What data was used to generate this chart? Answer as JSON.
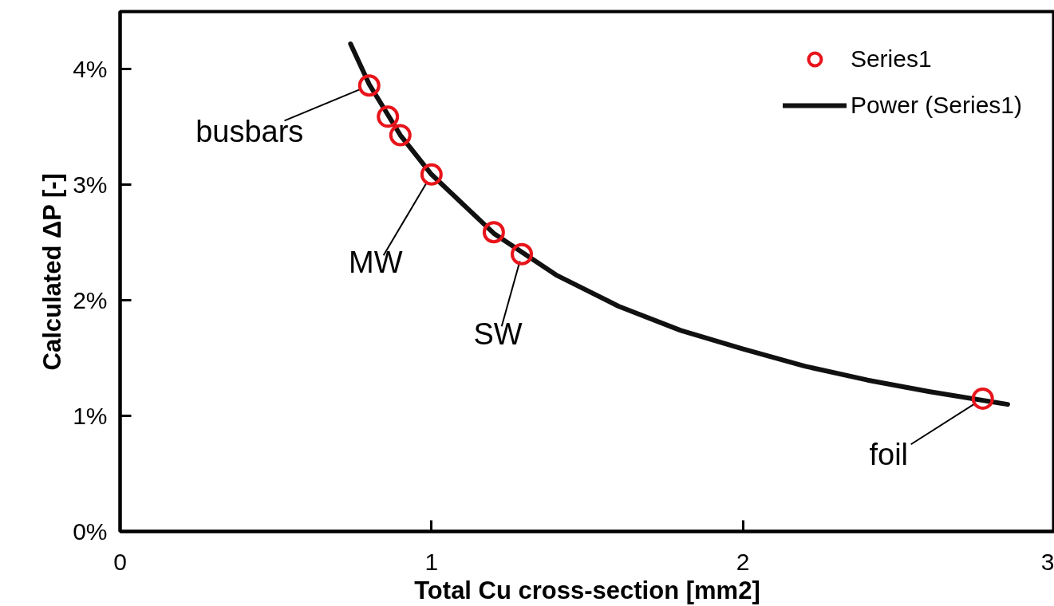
{
  "chart_data": {
    "type": "scatter",
    "xlabel": "Total Cu cross-section [mm2]",
    "ylabel": "Calculated ΔP [-]",
    "xlim": [
      0,
      3
    ],
    "xticks": [
      0,
      1,
      2,
      3
    ],
    "ylim": [
      0,
      4.5
    ],
    "yticks": [
      {
        "value": 0,
        "label": "0%"
      },
      {
        "value": 1,
        "label": "1%"
      },
      {
        "value": 2,
        "label": "2%"
      },
      {
        "value": 3,
        "label": "3%"
      },
      {
        "value": 4,
        "label": "4%"
      }
    ],
    "series": [
      {
        "name": "Series1",
        "type": "scatter",
        "marker": "circle",
        "color": "#e8141b",
        "x": [
          0.8,
          0.86,
          0.9,
          1.0,
          1.2,
          1.29,
          2.77
        ],
        "values": [
          3.86,
          3.59,
          3.43,
          3.09,
          2.59,
          2.4,
          1.15
        ]
      },
      {
        "name": "Power (Series1)",
        "type": "line",
        "marker": "none",
        "color": "#111111",
        "x": [
          0.74,
          0.8,
          0.9,
          1.0,
          1.2,
          1.4,
          1.6,
          1.8,
          2.0,
          2.2,
          2.4,
          2.6,
          2.85
        ],
        "values": [
          4.22,
          3.87,
          3.43,
          3.09,
          2.58,
          2.22,
          1.95,
          1.74,
          1.58,
          1.43,
          1.31,
          1.21,
          1.1
        ]
      }
    ],
    "annotations": [
      {
        "text": "busbars",
        "x": 0.8,
        "y": 3.86
      },
      {
        "text": "MW",
        "x": 1.0,
        "y": 3.09
      },
      {
        "text": "SW",
        "x": 1.29,
        "y": 2.4
      },
      {
        "text": "foil",
        "x": 2.77,
        "y": 1.15
      }
    ],
    "legend": "top right",
    "grid": false
  }
}
